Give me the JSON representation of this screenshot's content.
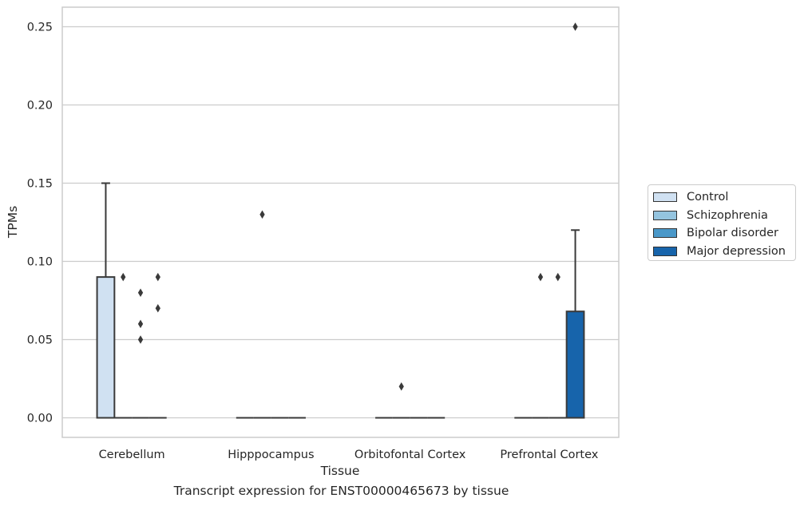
{
  "chart_data": {
    "type": "box",
    "ylabel": "TPMs",
    "xlabel": "Tissue",
    "caption": "Transcript expression for ENST00000465673 by tissue",
    "ylim": [
      -0.0125,
      0.2625
    ],
    "yticks": [
      0.0,
      0.05,
      0.1,
      0.15,
      0.2,
      0.25
    ],
    "ytick_labels": [
      "0.00",
      "0.05",
      "0.10",
      "0.15",
      "0.20",
      "0.25"
    ],
    "grid": "horizontal",
    "legend_position": "right",
    "categories": [
      "Cerebellum",
      "Hipppocampus",
      "Orbitofontal Cortex",
      "Prefrontal Cortex"
    ],
    "series": [
      {
        "name": "Control",
        "color": "#d0e1f2"
      },
      {
        "name": "Schizophrenia",
        "color": "#94c4df"
      },
      {
        "name": "Bipolar disorder",
        "color": "#4a98c9"
      },
      {
        "name": "Major depression",
        "color": "#1764ab"
      }
    ],
    "boxes": [
      {
        "category": "Cerebellum",
        "series": "Control",
        "min": 0,
        "q1": 0,
        "median": 0,
        "q3": 0.09,
        "max": 0.15,
        "outliers": []
      },
      {
        "category": "Cerebellum",
        "series": "Schizophrenia",
        "min": 0,
        "q1": 0,
        "median": 0,
        "q3": 0,
        "max": 0,
        "outliers": [
          0.09
        ]
      },
      {
        "category": "Cerebellum",
        "series": "Bipolar disorder",
        "min": 0,
        "q1": 0,
        "median": 0,
        "q3": 0,
        "max": 0,
        "outliers": [
          0.08,
          0.06,
          0.05
        ]
      },
      {
        "category": "Cerebellum",
        "series": "Major depression",
        "min": 0,
        "q1": 0,
        "median": 0,
        "q3": 0,
        "max": 0,
        "outliers": [
          0.09,
          0.07
        ]
      },
      {
        "category": "Hipppocampus",
        "series": "Control",
        "min": 0,
        "q1": 0,
        "median": 0,
        "q3": 0,
        "max": 0,
        "outliers": []
      },
      {
        "category": "Hipppocampus",
        "series": "Schizophrenia",
        "min": 0,
        "q1": 0,
        "median": 0,
        "q3": 0,
        "max": 0,
        "outliers": [
          0.13
        ]
      },
      {
        "category": "Hipppocampus",
        "series": "Bipolar disorder",
        "min": 0,
        "q1": 0,
        "median": 0,
        "q3": 0,
        "max": 0,
        "outliers": []
      },
      {
        "category": "Hipppocampus",
        "series": "Major depression",
        "min": 0,
        "q1": 0,
        "median": 0,
        "q3": 0,
        "max": 0,
        "outliers": []
      },
      {
        "category": "Orbitofontal Cortex",
        "series": "Control",
        "min": 0,
        "q1": 0,
        "median": 0,
        "q3": 0,
        "max": 0,
        "outliers": []
      },
      {
        "category": "Orbitofontal Cortex",
        "series": "Schizophrenia",
        "min": 0,
        "q1": 0,
        "median": 0,
        "q3": 0,
        "max": 0,
        "outliers": [
          0.02
        ]
      },
      {
        "category": "Orbitofontal Cortex",
        "series": "Bipolar disorder",
        "min": 0,
        "q1": 0,
        "median": 0,
        "q3": 0,
        "max": 0,
        "outliers": []
      },
      {
        "category": "Orbitofontal Cortex",
        "series": "Major depression",
        "min": 0,
        "q1": 0,
        "median": 0,
        "q3": 0,
        "max": 0,
        "outliers": []
      },
      {
        "category": "Prefrontal Cortex",
        "series": "Control",
        "min": 0,
        "q1": 0,
        "median": 0,
        "q3": 0,
        "max": 0,
        "outliers": []
      },
      {
        "category": "Prefrontal Cortex",
        "series": "Schizophrenia",
        "min": 0,
        "q1": 0,
        "median": 0,
        "q3": 0,
        "max": 0,
        "outliers": [
          0.09
        ]
      },
      {
        "category": "Prefrontal Cortex",
        "series": "Bipolar disorder",
        "min": 0,
        "q1": 0,
        "median": 0,
        "q3": 0,
        "max": 0,
        "outliers": [
          0.09
        ]
      },
      {
        "category": "Prefrontal Cortex",
        "series": "Major depression",
        "min": 0,
        "q1": 0,
        "median": 0,
        "q3": 0.068,
        "max": 0.12,
        "outliers": [
          0.25
        ]
      }
    ]
  }
}
